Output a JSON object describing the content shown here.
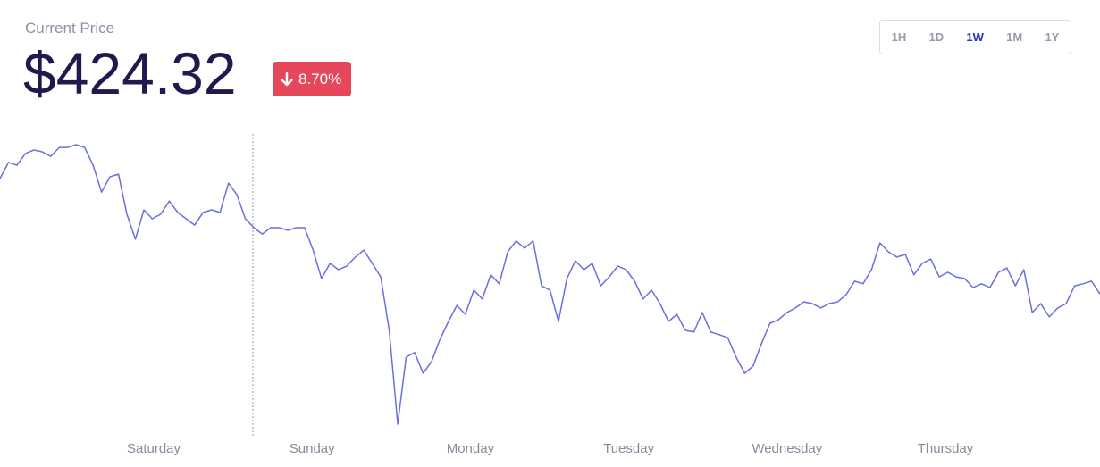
{
  "header": {
    "label": "Current Price",
    "price": "$424.32",
    "change": "8.70%"
  },
  "ranges": [
    "1H",
    "1D",
    "1W",
    "1M",
    "1Y"
  ],
  "active_range": "1W",
  "chart_data": {
    "type": "line",
    "color": "#6a6fe0",
    "xtick_labels": [
      "Saturday",
      "Sunday",
      "Monday",
      "Tuesday",
      "Wednesday",
      "Thursday"
    ],
    "ylim": [
      376,
      480
    ],
    "values": [
      464.5,
      470.1,
      469.1,
      473.2,
      474.4,
      473.8,
      472.2,
      475.3,
      475.3,
      476.3,
      475.3,
      469.1,
      459.8,
      465.1,
      466.0,
      452.1,
      443.4,
      453.6,
      450.5,
      452.1,
      456.7,
      452.7,
      450.5,
      448.3,
      452.7,
      453.6,
      452.7,
      462.9,
      458.9,
      450.5,
      447.4,
      445.2,
      447.4,
      447.4,
      446.5,
      447.4,
      447.4,
      439.6,
      429.7,
      435.0,
      432.8,
      434.1,
      437.2,
      439.6,
      435.0,
      430.3,
      411.7,
      379.1,
      402.4,
      404.0,
      396.8,
      400.8,
      408.6,
      414.8,
      420.4,
      417.3,
      425.7,
      422.6,
      431.0,
      427.9,
      439.0,
      442.8,
      440.3,
      442.8,
      427.2,
      425.7,
      414.8,
      429.7,
      435.9,
      432.8,
      435.0,
      427.2,
      430.3,
      434.1,
      432.8,
      428.8,
      422.6,
      425.7,
      421.0,
      414.8,
      417.3,
      411.7,
      411.1,
      417.9,
      411.1,
      410.2,
      409.2,
      402.4,
      396.8,
      399.3,
      407.1,
      414.2,
      415.4,
      417.9,
      419.5,
      421.6,
      421.0,
      419.5,
      421.0,
      421.6,
      424.1,
      428.8,
      427.9,
      432.8,
      442.1,
      439.0,
      437.2,
      438.1,
      431.0,
      435.0,
      436.5,
      430.3,
      431.9,
      430.3,
      429.7,
      426.6,
      427.9,
      426.6,
      431.9,
      433.4,
      427.2,
      432.8,
      417.9,
      421.0,
      416.4,
      419.5,
      421.0,
      427.2,
      427.9,
      428.8,
      424.3
    ]
  }
}
